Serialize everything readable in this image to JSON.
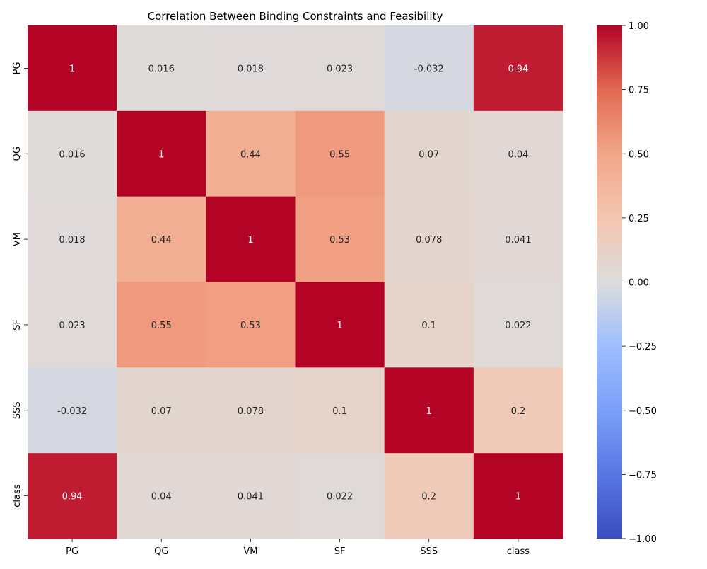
{
  "chart_data": {
    "type": "heatmap",
    "title": "Correlation Between Binding Constraints and Feasibility",
    "xlabel": "",
    "ylabel": "",
    "x_labels": [
      "PG",
      "QG",
      "VM",
      "SF",
      "SSS",
      "class"
    ],
    "y_labels": [
      "PG",
      "QG",
      "VM",
      "SF",
      "SSS",
      "class"
    ],
    "matrix": [
      [
        1,
        0.016,
        0.018,
        0.023,
        -0.032,
        0.94
      ],
      [
        0.016,
        1,
        0.44,
        0.55,
        0.07,
        0.04
      ],
      [
        0.018,
        0.44,
        1,
        0.53,
        0.078,
        0.041
      ],
      [
        0.023,
        0.55,
        0.53,
        1,
        0.1,
        0.022
      ],
      [
        -0.032,
        0.07,
        0.078,
        0.1,
        1,
        0.2
      ],
      [
        0.94,
        0.04,
        0.041,
        0.022,
        0.2,
        1
      ]
    ],
    "cell_labels": [
      [
        "1",
        "0.016",
        "0.018",
        "0.023",
        "-0.032",
        "0.94"
      ],
      [
        "0.016",
        "1",
        "0.44",
        "0.55",
        "0.07",
        "0.04"
      ],
      [
        "0.018",
        "0.44",
        "1",
        "0.53",
        "0.078",
        "0.041"
      ],
      [
        "0.023",
        "0.55",
        "0.53",
        "1",
        "0.1",
        "0.022"
      ],
      [
        "-0.032",
        "0.07",
        "0.078",
        "0.1",
        "1",
        "0.2"
      ],
      [
        "0.94",
        "0.04",
        "0.041",
        "0.022",
        "0.2",
        "1"
      ]
    ],
    "colormap": "coolwarm",
    "vmin": -1,
    "vmax": 1,
    "colorbar_ticks": [
      1.0,
      0.75,
      0.5,
      0.25,
      0.0,
      -0.25,
      -0.5,
      -0.75,
      -1.0
    ],
    "colorbar_tick_labels": [
      "1.00",
      "0.75",
      "0.50",
      "0.25",
      "0.00",
      "−0.25",
      "−0.50",
      "−0.75",
      "−1.00"
    ],
    "grid": false,
    "legend": "colorbar-right"
  }
}
